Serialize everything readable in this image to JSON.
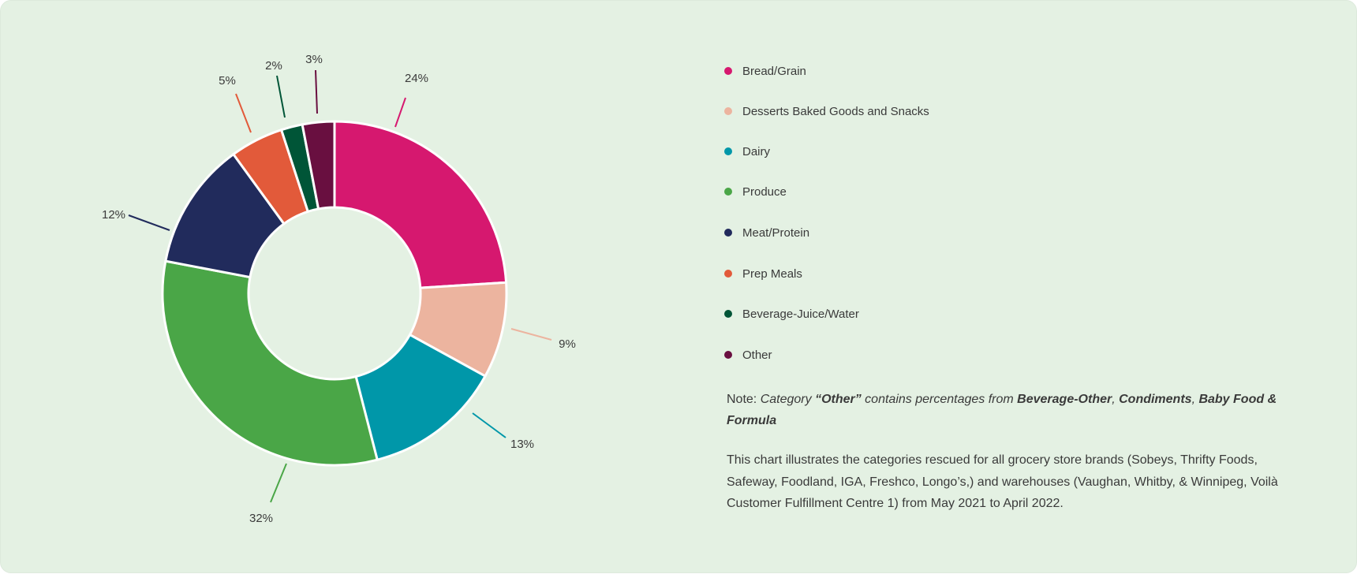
{
  "chart_data": {
    "type": "pie",
    "subtype": "donut",
    "categories": [
      "Bread/Grain",
      "Desserts Baked Goods and Snacks",
      "Dairy",
      "Produce",
      "Meat/Protein",
      "Prep Meals",
      "Beverage-Juice/Water",
      "Other"
    ],
    "values": [
      24,
      9,
      13,
      32,
      12,
      5,
      2,
      3
    ],
    "data_labels": [
      "24%",
      "9%",
      "13%",
      "32%",
      "12%",
      "5%",
      "2%",
      "3%"
    ],
    "colors": [
      "#d6186f",
      "#ecb49f",
      "#0097a9",
      "#4aa647",
      "#212b5c",
      "#e25a3a",
      "#005537",
      "#690f40"
    ],
    "unit": "%",
    "legend_placement": "right"
  },
  "legend": {
    "items": [
      {
        "label": "Bread/Grain",
        "color": "#d6186f"
      },
      {
        "label": "Desserts Baked Goods and Snacks",
        "color": "#ecb49f"
      },
      {
        "label": "Dairy",
        "color": "#0097a9"
      },
      {
        "label": "Produce",
        "color": "#4aa647"
      },
      {
        "label": "Meat/Protein",
        "color": "#212b5c"
      },
      {
        "label": "Prep Meals",
        "color": "#e25a3a"
      },
      {
        "label": "Beverage-Juice/Water",
        "color": "#005537"
      },
      {
        "label": "Other",
        "color": "#690f40"
      }
    ]
  },
  "note": {
    "prefix": "Note: ",
    "t1": "Category ",
    "t2": "“Other”",
    "t3": " contains percentages from ",
    "t4": "Beverage-Other",
    "t5": ", ",
    "t6": "Condiments",
    "t7": ", ",
    "t8": "Baby Food & Formula"
  },
  "description": "This chart illustrates the categories rescued for all grocery store brands (Sobeys, Thrifty Foods, Safeway, Foodland, IGA, Freshco, Longo’s,) and warehouses (Vaughan, Whitby, & Winnipeg, Voilà Customer Fulfillment Centre 1) from May 2021 to April 2022.",
  "colors": {
    "background": "#e4f1e3",
    "text": "#3a3a3a"
  }
}
